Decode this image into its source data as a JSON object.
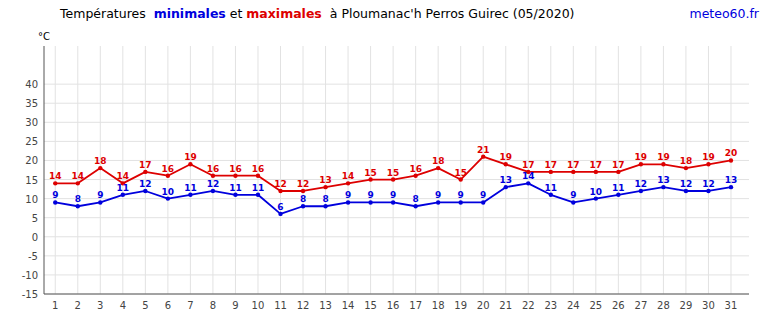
{
  "chart_data": {
    "type": "line",
    "title": "Températures  minimales et maximales  à Ploumanac'h Perros Guirec (05/2020)",
    "ylabel": "°C",
    "annotations": [
      {
        "text": "meteo60.fr",
        "color": "#0000dd"
      }
    ],
    "x": [
      1,
      2,
      3,
      4,
      5,
      6,
      7,
      8,
      9,
      10,
      11,
      12,
      13,
      14,
      15,
      16,
      17,
      18,
      19,
      20,
      21,
      22,
      23,
      24,
      25,
      26,
      27,
      28,
      29,
      30,
      31
    ],
    "series": [
      {
        "name": "minimales",
        "color": "#0000dd",
        "marker": "circle",
        "values": [
          9,
          8,
          9,
          11,
          12,
          10,
          11,
          12,
          11,
          11,
          6,
          8,
          8,
          9,
          9,
          9,
          8,
          9,
          9,
          9,
          13,
          14,
          11,
          9,
          10,
          11,
          12,
          13,
          12,
          12,
          13
        ]
      },
      {
        "name": "maximales",
        "color": "#dd0000",
        "marker": "circle",
        "values": [
          14,
          14,
          18,
          14,
          17,
          16,
          19,
          16,
          16,
          16,
          12,
          12,
          13,
          14,
          15,
          15,
          16,
          18,
          15,
          21,
          19,
          17,
          17,
          17,
          17,
          17,
          19,
          19,
          18,
          19,
          20
        ]
      }
    ],
    "xlim": [
      0.5,
      31.8
    ],
    "xticks": [
      1,
      2,
      3,
      4,
      5,
      6,
      7,
      8,
      9,
      10,
      11,
      12,
      13,
      14,
      15,
      16,
      17,
      18,
      19,
      20,
      21,
      22,
      23,
      24,
      25,
      26,
      27,
      28,
      29,
      30,
      31
    ],
    "ylim": [
      -15,
      50
    ],
    "yticks": [
      -15,
      -10,
      -5,
      0,
      5,
      10,
      15,
      20,
      25,
      30,
      35,
      40
    ],
    "grid": true,
    "data_labels": true
  }
}
